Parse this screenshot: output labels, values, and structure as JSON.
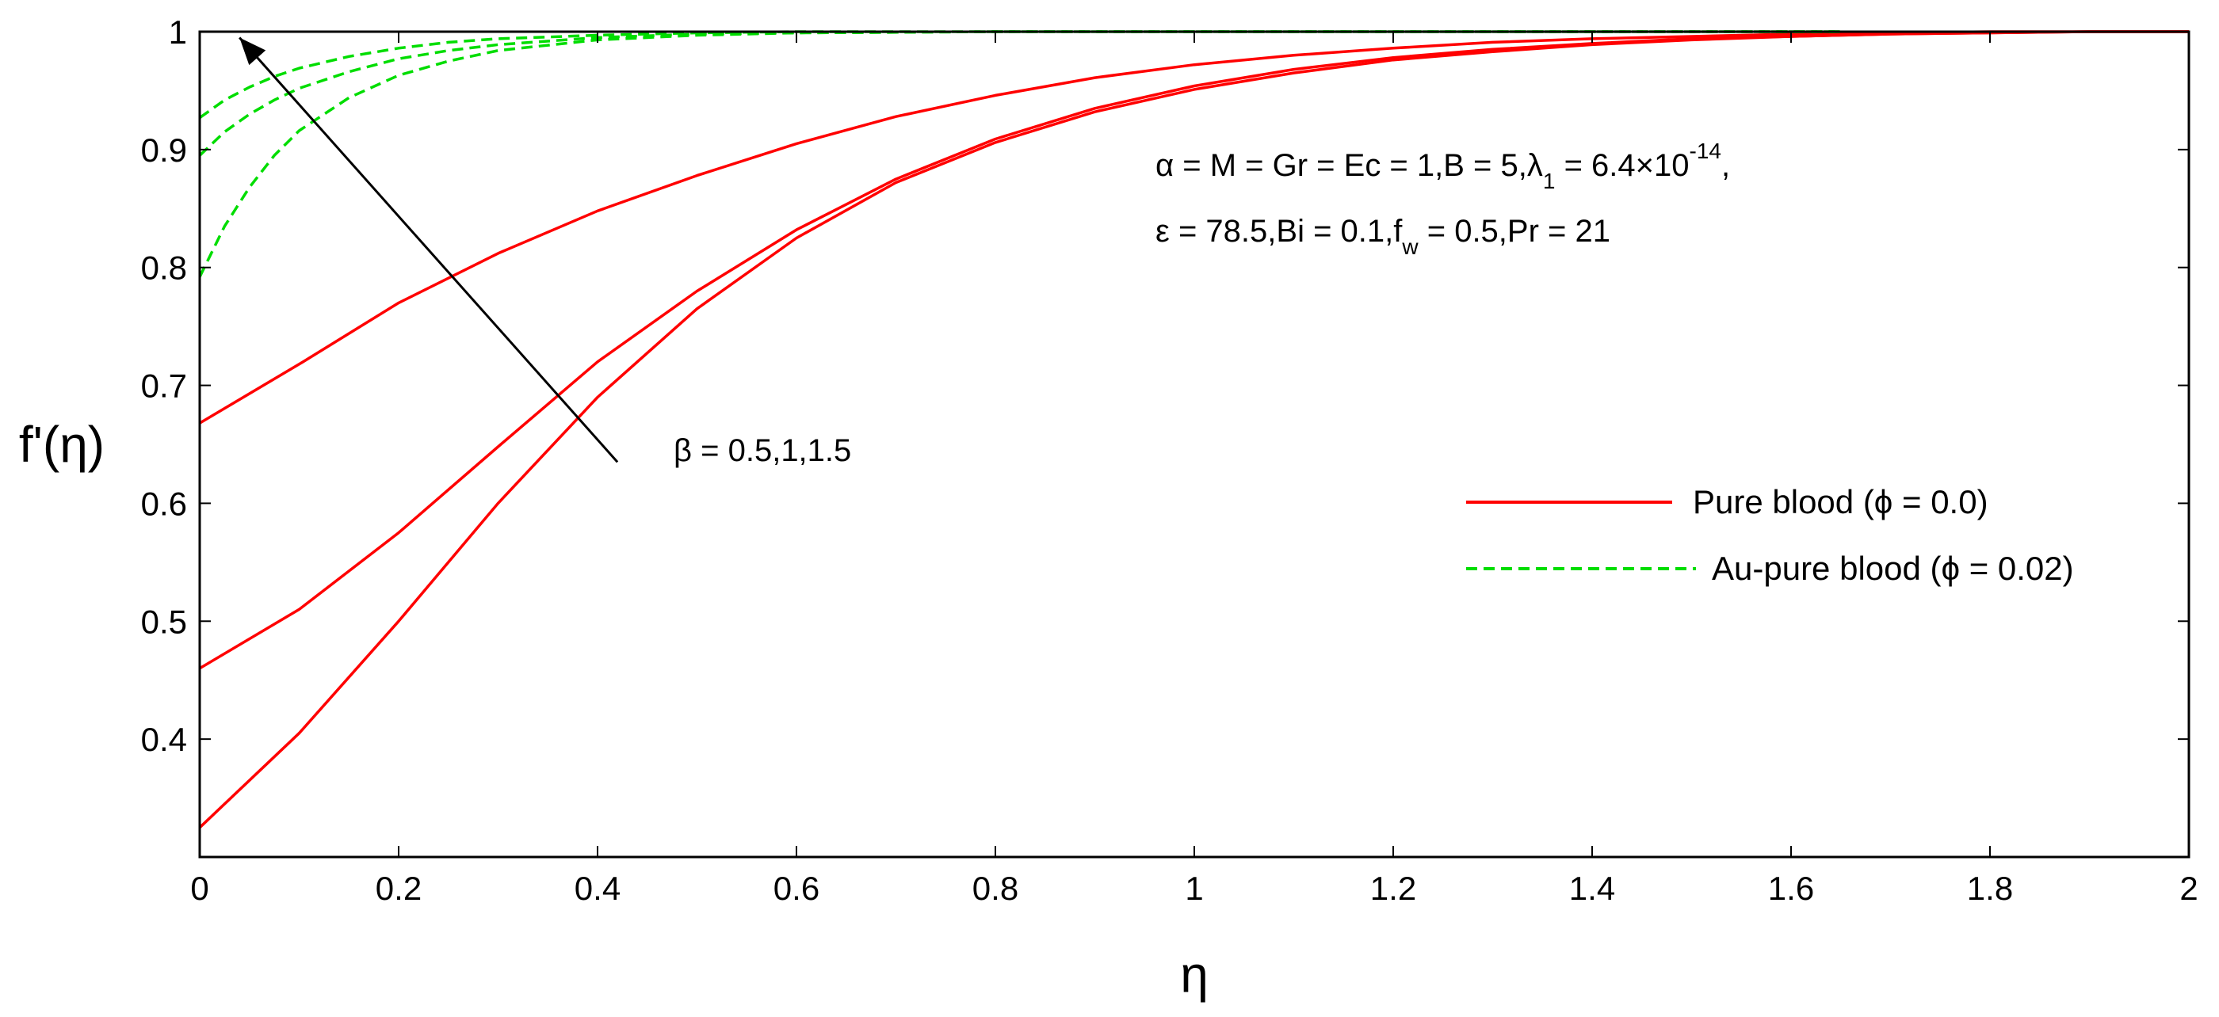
{
  "chart_data": {
    "type": "line",
    "xlabel": "η",
    "ylabel": "f'(η)",
    "xlim": [
      0,
      2
    ],
    "ylim": [
      0.3,
      1.0
    ],
    "x_ticks": [
      "0",
      "0.2",
      "0.4",
      "0.6",
      "0.8",
      "1",
      "1.2",
      "1.4",
      "1.6",
      "1.8",
      "2"
    ],
    "y_ticks": [
      "0.4",
      "0.5",
      "0.6",
      "0.7",
      "0.8",
      "0.9",
      "1"
    ],
    "x_tick_values": [
      0,
      0.2,
      0.4,
      0.6,
      0.8,
      1.0,
      1.2,
      1.4,
      1.6,
      1.8,
      2.0
    ],
    "y_tick_values": [
      0.4,
      0.5,
      0.6,
      0.7,
      0.8,
      0.9,
      1.0
    ],
    "grid": false,
    "legend_position": "right",
    "legend": [
      {
        "label": "Pure blood (ϕ = 0.0)",
        "color": "#ff0000",
        "dash": "solid"
      },
      {
        "label": "Au-pure blood (ϕ = 0.02)",
        "color": "#00dd00",
        "dash": "dashed"
      }
    ],
    "annotation": {
      "arrow_label": "β = 0.5,1,1.5",
      "line1_main": "α = M = Gr = Ec = 1,B = 5,λ",
      "line1_sub": "1",
      "line1_rest": " = 6.4×10",
      "line1_sup": "-14",
      "line1_tail": ",",
      "line2_main": "ε = 78.5,Bi = 0.1,f",
      "line2_sub": "w",
      "line2_rest": " = 0.5,Pr = 21"
    },
    "series": [
      {
        "group": "pure",
        "color": "#ff0000",
        "dash": "solid",
        "x": [
          0,
          0.1,
          0.2,
          0.3,
          0.4,
          0.5,
          0.6,
          0.7,
          0.8,
          0.9,
          1.0,
          1.1,
          1.2,
          1.3,
          1.4,
          1.5,
          1.6,
          1.7,
          1.8,
          1.9,
          2.0
        ],
        "y": [
          0.325,
          0.405,
          0.5,
          0.6,
          0.69,
          0.765,
          0.825,
          0.872,
          0.906,
          0.932,
          0.951,
          0.965,
          0.976,
          0.983,
          0.989,
          0.993,
          0.996,
          0.998,
          0.999,
          1.0,
          1.0
        ]
      },
      {
        "group": "pure",
        "color": "#ff0000",
        "dash": "solid",
        "x": [
          0,
          0.1,
          0.2,
          0.3,
          0.4,
          0.5,
          0.6,
          0.7,
          0.8,
          0.9,
          1.0,
          1.1,
          1.2,
          1.3,
          1.4,
          1.5,
          1.6,
          1.7,
          1.8,
          1.9,
          2.0
        ],
        "y": [
          0.46,
          0.51,
          0.575,
          0.648,
          0.72,
          0.78,
          0.832,
          0.875,
          0.909,
          0.935,
          0.954,
          0.968,
          0.978,
          0.985,
          0.99,
          0.994,
          0.996,
          0.998,
          0.999,
          1.0,
          1.0
        ]
      },
      {
        "group": "pure",
        "color": "#ff0000",
        "dash": "solid",
        "x": [
          0,
          0.1,
          0.2,
          0.3,
          0.4,
          0.5,
          0.6,
          0.7,
          0.8,
          0.9,
          1.0,
          1.1,
          1.2,
          1.3,
          1.4,
          1.5,
          1.6,
          1.7,
          1.8,
          1.9,
          2.0
        ],
        "y": [
          0.668,
          0.718,
          0.77,
          0.812,
          0.848,
          0.878,
          0.905,
          0.928,
          0.946,
          0.961,
          0.972,
          0.98,
          0.986,
          0.991,
          0.994,
          0.996,
          0.998,
          0.999,
          1.0,
          1.0,
          1.0
        ]
      },
      {
        "group": "au",
        "color": "#00dd00",
        "dash": "dashed",
        "x": [
          0,
          0.025,
          0.05,
          0.075,
          0.1,
          0.15,
          0.2,
          0.25,
          0.3,
          0.4,
          0.5,
          0.6,
          0.8,
          1.0,
          1.2,
          1.4,
          1.6,
          1.65
        ],
        "y": [
          0.792,
          0.835,
          0.868,
          0.895,
          0.916,
          0.944,
          0.963,
          0.975,
          0.984,
          0.993,
          0.997,
          0.999,
          1.0,
          1.0,
          1.0,
          1.0,
          1.0,
          1.0
        ]
      },
      {
        "group": "au",
        "color": "#00dd00",
        "dash": "dashed",
        "x": [
          0,
          0.025,
          0.05,
          0.075,
          0.1,
          0.15,
          0.2,
          0.25,
          0.3,
          0.4,
          0.5,
          0.6,
          0.8,
          1.0,
          1.2,
          1.4,
          1.6,
          1.65
        ],
        "y": [
          0.895,
          0.915,
          0.93,
          0.942,
          0.952,
          0.966,
          0.977,
          0.984,
          0.989,
          0.995,
          0.998,
          0.999,
          1.0,
          1.0,
          1.0,
          1.0,
          1.0,
          1.0
        ]
      },
      {
        "group": "au",
        "color": "#00dd00",
        "dash": "dashed",
        "x": [
          0,
          0.025,
          0.05,
          0.075,
          0.1,
          0.15,
          0.2,
          0.25,
          0.3,
          0.4,
          0.5,
          0.6,
          0.8,
          1.0,
          1.2,
          1.4,
          1.6,
          1.65
        ],
        "y": [
          0.927,
          0.942,
          0.953,
          0.962,
          0.969,
          0.979,
          0.986,
          0.991,
          0.994,
          0.997,
          0.999,
          1.0,
          1.0,
          1.0,
          1.0,
          1.0,
          1.0,
          1.0
        ]
      }
    ],
    "arrow": {
      "from": {
        "x": 0.42,
        "y": 0.635
      },
      "to": {
        "x": 0.04,
        "y": 0.995
      }
    }
  }
}
